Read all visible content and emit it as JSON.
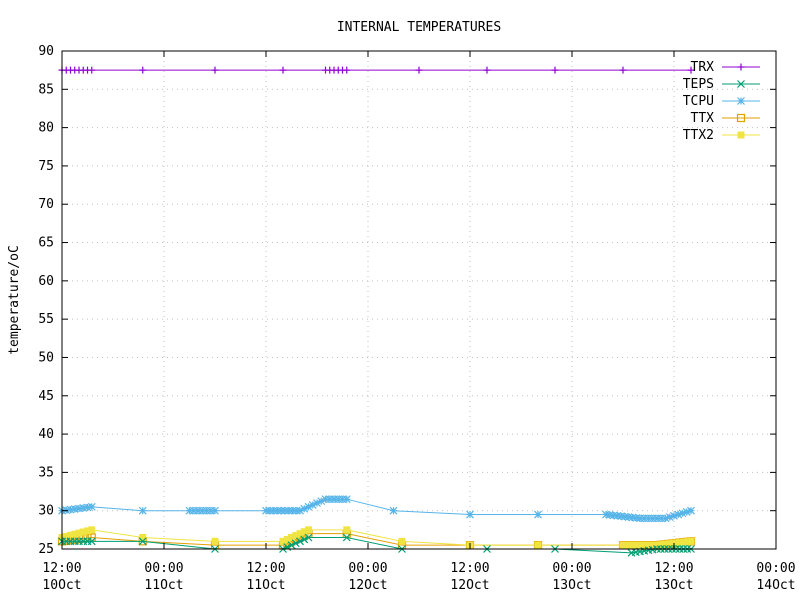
{
  "chart_data": {
    "type": "line",
    "title": "INTERNAL TEMPERATURES",
    "xlabel": "",
    "ylabel": "temperature/oC",
    "ylim": [
      25,
      90
    ],
    "yticks": [
      25,
      30,
      35,
      40,
      45,
      50,
      55,
      60,
      65,
      70,
      75,
      80,
      85,
      90
    ],
    "xlim": [
      "10 Oct 12:00",
      "14 Oct 00:00"
    ],
    "xticks": [
      {
        "time": "12:00",
        "date": "10Oct"
      },
      {
        "time": "00:00",
        "date": "11Oct"
      },
      {
        "time": "12:00",
        "date": "11Oct"
      },
      {
        "time": "00:00",
        "date": "12Oct"
      },
      {
        "time": "12:00",
        "date": "12Oct"
      },
      {
        "time": "00:00",
        "date": "13Oct"
      },
      {
        "time": "12:00",
        "date": "13Oct"
      },
      {
        "time": "00:00",
        "date": "14Oct"
      }
    ],
    "grid": true,
    "legend_position": "top-right",
    "series": [
      {
        "name": "TRX",
        "color": "#9400d3",
        "marker": "plus",
        "x": [
          "10 Oct 12:00",
          "10 Oct 15:30",
          "10 Oct 21:30",
          "11 Oct 06:00",
          "11 Oct 14:00",
          "11 Oct 19:00",
          "11 Oct 21:30",
          "12 Oct 06:00",
          "12 Oct 14:00",
          "12 Oct 22:00",
          "13 Oct 06:00",
          "13 Oct 14:00"
        ],
        "values": [
          87.5,
          87.5,
          87.5,
          87.5,
          87.5,
          87.5,
          87.5,
          87.5,
          87.5,
          87.5,
          87.5,
          87.5
        ]
      },
      {
        "name": "TEPS",
        "color": "#009e73",
        "marker": "cross",
        "x": [
          "10 Oct 12:00",
          "10 Oct 15:30",
          "10 Oct 21:30",
          "11 Oct 06:00",
          "11 Oct 14:00",
          "11 Oct 17:00",
          "11 Oct 21:30",
          "12 Oct 04:00",
          "12 Oct 14:00",
          "12 Oct 22:00",
          "13 Oct 07:00",
          "13 Oct 10:00",
          "13 Oct 14:00"
        ],
        "values": [
          26,
          26,
          26,
          25,
          25,
          26.5,
          26.5,
          25,
          25,
          25,
          24.5,
          25,
          25
        ]
      },
      {
        "name": "TCPU",
        "color": "#56b4e9",
        "marker": "star",
        "x": [
          "10 Oct 12:00",
          "10 Oct 15:30",
          "10 Oct 21:30",
          "11 Oct 03:00",
          "11 Oct 06:00",
          "11 Oct 12:00",
          "11 Oct 16:00",
          "11 Oct 19:00",
          "11 Oct 21:30",
          "12 Oct 03:00",
          "12 Oct 12:00",
          "12 Oct 20:00",
          "13 Oct 04:00",
          "13 Oct 08:00",
          "13 Oct 11:00",
          "13 Oct 14:00"
        ],
        "values": [
          30,
          30.5,
          30,
          30,
          30,
          30,
          30,
          31.5,
          31.5,
          30,
          29.5,
          29.5,
          29.5,
          29,
          29,
          30
        ]
      },
      {
        "name": "TTX",
        "color": "#e69f00",
        "marker": "square-open",
        "x": [
          "10 Oct 12:00",
          "10 Oct 15:30",
          "10 Oct 21:30",
          "11 Oct 06:00",
          "11 Oct 14:00",
          "11 Oct 17:00",
          "11 Oct 21:30",
          "12 Oct 04:00",
          "12 Oct 12:00",
          "12 Oct 20:00",
          "13 Oct 06:00",
          "13 Oct 10:00",
          "13 Oct 14:00"
        ],
        "values": [
          26,
          26.5,
          26,
          25.5,
          25.5,
          27,
          27,
          25.5,
          25.5,
          25.5,
          25.5,
          25.5,
          26
        ]
      },
      {
        "name": "TTX2",
        "color": "#f0e442",
        "marker": "square-filled",
        "x": [
          "10 Oct 12:00",
          "10 Oct 15:30",
          "10 Oct 21:30",
          "11 Oct 06:00",
          "11 Oct 14:00",
          "11 Oct 17:00",
          "11 Oct 21:30",
          "12 Oct 04:00",
          "12 Oct 12:00",
          "12 Oct 20:00",
          "13 Oct 06:00",
          "13 Oct 10:00",
          "13 Oct 14:00"
        ],
        "values": [
          26.5,
          27.5,
          26.5,
          26,
          26,
          27.5,
          27.5,
          26,
          25.5,
          25.5,
          25.5,
          25.5,
          26
        ]
      }
    ]
  }
}
